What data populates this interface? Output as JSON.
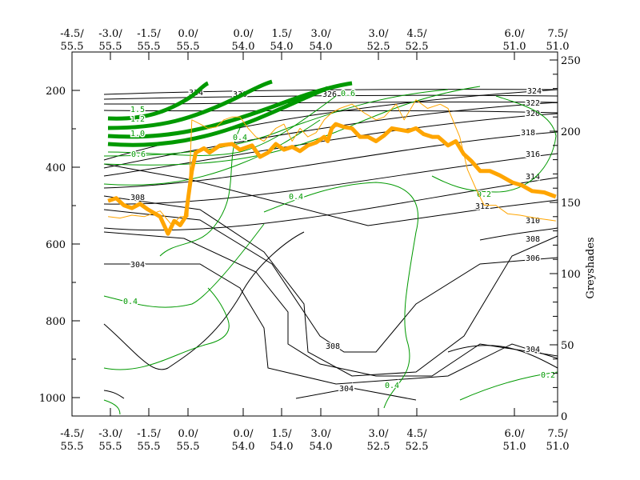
{
  "chart_data": {
    "type": "line",
    "x_tick_labels": [
      {
        "top": "-4.5/",
        "bottom": "55.5"
      },
      {
        "top": "-3.0/",
        "bottom": "55.5"
      },
      {
        "top": "-1.5/",
        "bottom": "55.5"
      },
      {
        "top": "0.0/",
        "bottom": "55.5"
      },
      {
        "top": "0.0/",
        "bottom": "54.0"
      },
      {
        "top": "1.5/",
        "bottom": "54.0"
      },
      {
        "top": "3.0/",
        "bottom": "54.0"
      },
      {
        "top": "3.0/",
        "bottom": "52.5"
      },
      {
        "top": "4.5/",
        "bottom": "52.5"
      },
      {
        "top": "6.0/",
        "bottom": "51.0"
      },
      {
        "top": "7.5/",
        "bottom": "51.0"
      }
    ],
    "left_axis": {
      "ticks": [
        "200",
        "400",
        "600",
        "800",
        "1000"
      ],
      "ylim": [
        1048,
        100
      ],
      "inverted": true
    },
    "right_axis": {
      "label": "Greyshades",
      "ticks": [
        "0",
        "50",
        "100",
        "150",
        "200",
        "250"
      ],
      "ylim": [
        0,
        250
      ]
    },
    "black_contour_labels": [
      "324",
      "322",
      "320",
      "318",
      "316",
      "314",
      "312",
      "310",
      "308",
      "306",
      "304",
      "334",
      "326",
      "330"
    ],
    "green_contour_labels": [
      "0.2",
      "0.4",
      "0.6",
      "0.8",
      "1.0",
      "1.2",
      "1.5"
    ],
    "colors": {
      "theta_contours": "#000000",
      "green_contours": "#009900",
      "greyshades": "#FFA500"
    },
    "series": [
      {
        "style": "thick",
        "color": "#FFA500",
        "x": [
          0.94,
          1.15,
          1.35,
          1.56,
          1.77,
          1.98,
          2.29,
          2.49,
          2.65,
          2.8,
          2.94,
          3.07,
          3.14,
          3.29,
          3.39,
          3.58,
          3.8,
          3.94,
          4.23,
          4.44,
          4.65,
          4.85,
          5.06,
          5.27,
          5.47,
          5.67,
          5.88,
          6.06,
          6.12,
          6.19,
          6.26,
          6.4,
          6.54,
          6.68,
          6.82,
          6.96,
          7.15,
          7.35,
          7.56,
          7.77,
          7.98,
          8.07,
          8.16,
          8.22,
          8.32,
          8.4,
          8.48,
          8.56,
          8.65,
          8.75,
          8.85,
          8.98,
          9.17,
          9.41,
          9.69,
          9.96
        ],
        "values": [
          151,
          153,
          148,
          146,
          149,
          145,
          140,
          128,
          137,
          134,
          140,
          172,
          185,
          188,
          185,
          190,
          191,
          187,
          190,
          182,
          185,
          191,
          187,
          189,
          186,
          190,
          192,
          196,
          193,
          202,
          205,
          203,
          202,
          196,
          196,
          193,
          197,
          202,
          201,
          200,
          202,
          198,
          196,
          196,
          190,
          193,
          184,
          179,
          172,
          172,
          169,
          164,
          162,
          158,
          157,
          154
        ]
      },
      {
        "style": "thin",
        "color": "#FFA500",
        "x": [
          0.94,
          1.25,
          1.56,
          1.88,
          2.29,
          2.59,
          2.8,
          3.0,
          3.07,
          3.22,
          3.36,
          3.51,
          3.65,
          3.8,
          3.94,
          4.13,
          4.33,
          4.54,
          4.85,
          5.06,
          5.27,
          5.47,
          5.67,
          5.88,
          6.06,
          6.19,
          6.33,
          6.54,
          6.75,
          6.96,
          7.15,
          7.46,
          7.67,
          7.98,
          8.11,
          8.24,
          8.32,
          8.44,
          8.52,
          8.61,
          8.69,
          8.81,
          8.93,
          9.13,
          9.5,
          9.96
        ],
        "values": [
          140,
          139,
          141,
          140,
          144,
          134,
          140,
          140,
          208,
          205,
          202,
          203,
          208,
          210,
          210,
          202,
          196,
          193,
          202,
          205,
          193,
          202,
          196,
          199,
          208,
          213,
          216,
          219,
          213,
          208,
          210,
          219,
          208,
          222,
          216,
          219,
          216,
          196,
          173,
          159,
          148,
          148,
          142,
          141,
          139,
          137
        ]
      }
    ]
  }
}
